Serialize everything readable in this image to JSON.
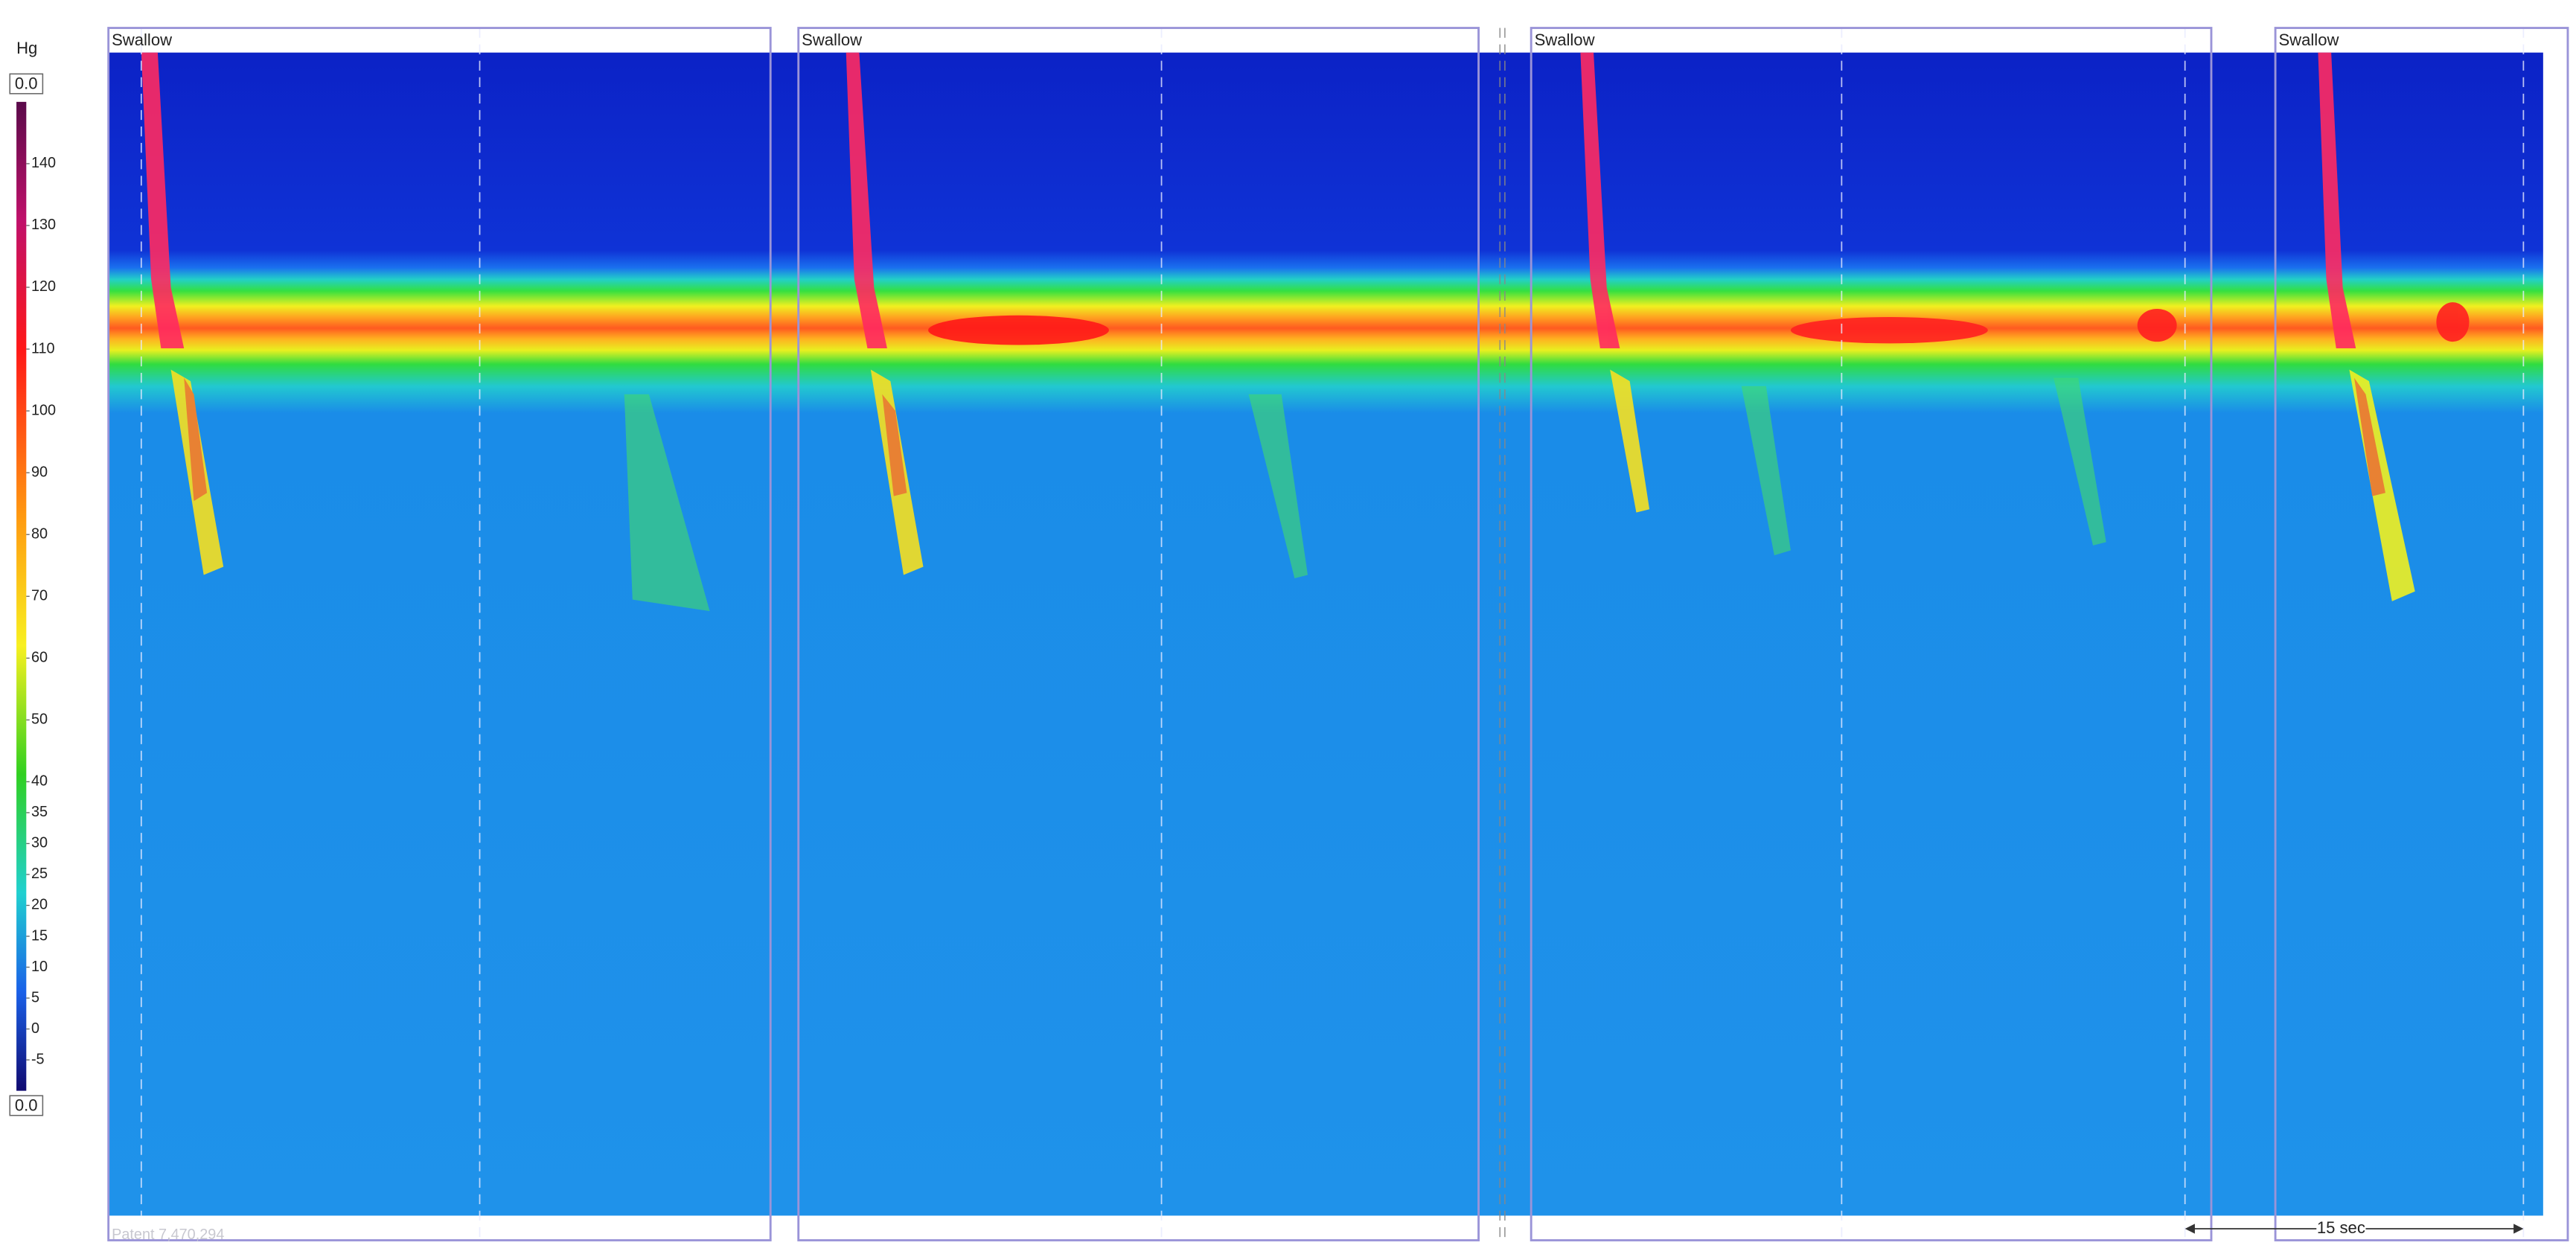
{
  "chart_data": {
    "type": "heatmap",
    "colorbar": {
      "unit": "Hg",
      "ylim": [
        -10,
        150
      ],
      "yticks": [
        140,
        130,
        120,
        110,
        100,
        90,
        80,
        70,
        60,
        50,
        40,
        35,
        30,
        25,
        20,
        15,
        10,
        5,
        0,
        -5
      ],
      "end_labels": [
        "0.0",
        "0.0"
      ]
    },
    "annotations": [
      "Swallow",
      "Swallow",
      "Swallow",
      "Swallow"
    ],
    "scale_label": "15 sec",
    "watermark": "Patent 7,470,294"
  }
}
